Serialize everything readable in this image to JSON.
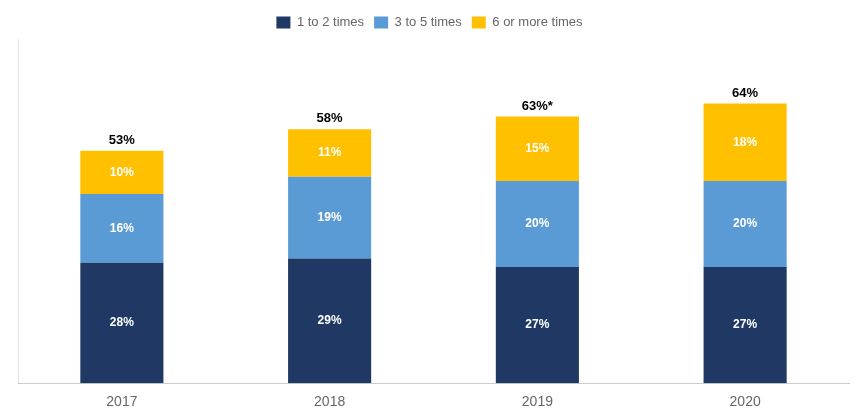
{
  "chart_data": {
    "type": "bar",
    "stacked": true,
    "categories": [
      "2017",
      "2018",
      "2019",
      "2020"
    ],
    "series": [
      {
        "name": "1 to 2 times",
        "color": "#1F3864",
        "values": [
          28,
          29,
          27,
          27
        ],
        "value_labels": [
          "28%",
          "29%",
          "27%",
          "27%"
        ]
      },
      {
        "name": "3 to 5 times",
        "color": "#5B9BD5",
        "values": [
          16,
          19,
          20,
          20
        ],
        "value_labels": [
          "16%",
          "19%",
          "20%",
          "20%"
        ]
      },
      {
        "name": "6 or more times",
        "color": "#FFC000",
        "values": [
          10,
          11,
          15,
          18
        ],
        "value_labels": [
          "10%",
          "11%",
          "15%",
          "18%"
        ]
      }
    ],
    "total_labels": [
      "53%",
      "58%",
      "63%*",
      "64%"
    ],
    "ylim": [
      0,
      80
    ],
    "data_labels": true,
    "tick_labels": "x",
    "grid": false,
    "legend": "top"
  }
}
